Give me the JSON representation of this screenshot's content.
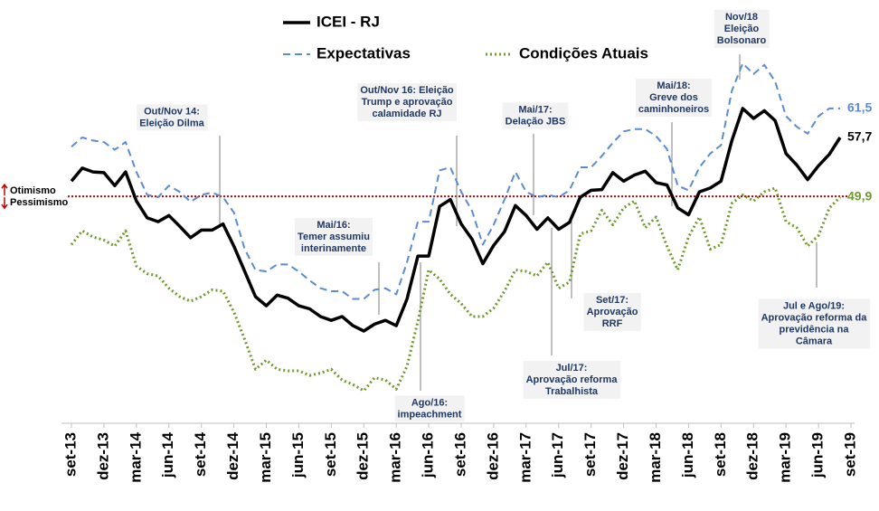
{
  "chart_data": {
    "type": "line",
    "categories": [
      "set-13",
      null,
      null,
      "dez-13",
      null,
      null,
      "mar-14",
      null,
      null,
      "jun-14",
      null,
      null,
      "set-14",
      null,
      null,
      "dez-14",
      null,
      null,
      "mar-15",
      null,
      null,
      "jun-15",
      null,
      null,
      "set-15",
      null,
      null,
      "dez-15",
      null,
      null,
      "mar-16",
      null,
      null,
      "jun-16",
      null,
      null,
      "set-16",
      null,
      null,
      "dez-16",
      null,
      null,
      "mar-17",
      null,
      null,
      "jun-17",
      null,
      null,
      "set-17",
      null,
      null,
      "dez-17",
      null,
      null,
      "mar-18",
      null,
      null,
      "jun-18",
      null,
      null,
      "set-18",
      null,
      null,
      "dez-18",
      null,
      null,
      "mar-19",
      null,
      null,
      "jun-19",
      null,
      null,
      "set-19"
    ],
    "series": [
      {
        "name": "ICEI - RJ",
        "color": "#000000",
        "dash": "solid",
        "values": [
          52.0,
          53.7,
          53.2,
          53.1,
          51.4,
          53.2,
          49.4,
          47.2,
          46.7,
          47.5,
          46.1,
          44.6,
          45.6,
          45.6,
          46.4,
          43.5,
          40.2,
          36.9,
          35.7,
          37.1,
          36.7,
          35.7,
          35.3,
          34.3,
          33.8,
          34.3,
          33.1,
          32.4,
          33.3,
          33.8,
          33.1,
          36.6,
          42.2,
          42.2,
          48.7,
          49.6,
          46.4,
          44.4,
          41.2,
          43.6,
          45.4,
          48.8,
          47.5,
          45.7,
          47.2,
          45.7,
          46.6,
          49.9,
          50.8,
          50.9,
          53.1,
          52.0,
          52.8,
          53.3,
          51.8,
          51.5,
          48.5,
          47.6,
          50.6,
          51.1,
          52.0,
          57.3,
          61.5,
          60.2,
          61.2,
          59.9,
          55.6,
          54.1,
          52.2,
          54.0,
          55.5,
          57.7,
          null
        ],
        "value_labels": [
          null,
          null,
          null,
          null,
          null,
          null,
          null,
          null,
          null,
          null,
          null,
          null,
          null,
          null,
          null,
          null,
          null,
          null,
          null,
          null,
          null,
          null,
          null,
          null,
          null,
          null,
          null,
          null,
          null,
          null,
          null,
          null,
          null,
          null,
          null,
          null,
          null,
          null,
          null,
          null,
          null,
          null,
          null,
          null,
          null,
          null,
          null,
          null,
          null,
          null,
          null,
          null,
          null,
          null,
          null,
          null,
          null,
          null,
          null,
          null,
          null,
          null,
          null,
          null,
          null,
          null,
          null,
          null,
          null,
          null,
          null,
          "57,7",
          null
        ]
      },
      {
        "name": "Expectativas",
        "color": "#5b8bd0",
        "dash": "dashed",
        "values": [
          56.5,
          57.7,
          57.3,
          57.1,
          56.1,
          57.1,
          53.2,
          50.2,
          49.9,
          51.4,
          50.6,
          49.3,
          50.2,
          50.5,
          49.9,
          47.9,
          43.1,
          40.4,
          40.2,
          41.1,
          41.1,
          40.2,
          39.0,
          38.0,
          37.6,
          37.6,
          36.6,
          36.6,
          37.8,
          38.0,
          37.2,
          41.4,
          46.7,
          46.7,
          53.4,
          53.8,
          50.6,
          48.1,
          43.7,
          46.3,
          49.6,
          53.2,
          50.6,
          49.9,
          50.2,
          49.9,
          50.8,
          53.8,
          53.8,
          55.3,
          57.0,
          58.5,
          58.8,
          58.8,
          57.9,
          56.2,
          51.4,
          50.8,
          53.8,
          55.6,
          56.7,
          63.8,
          67.4,
          66.0,
          67.2,
          65.0,
          60.5,
          59.1,
          58.2,
          60.5,
          61.5,
          61.5,
          null
        ],
        "value_labels": [
          null,
          null,
          null,
          null,
          null,
          null,
          null,
          null,
          null,
          null,
          null,
          null,
          null,
          null,
          null,
          null,
          null,
          null,
          null,
          null,
          null,
          null,
          null,
          null,
          null,
          null,
          null,
          null,
          null,
          null,
          null,
          null,
          null,
          null,
          null,
          null,
          null,
          null,
          null,
          null,
          null,
          null,
          null,
          null,
          null,
          null,
          null,
          null,
          null,
          null,
          null,
          null,
          null,
          null,
          null,
          null,
          null,
          null,
          null,
          null,
          null,
          null,
          null,
          null,
          null,
          null,
          null,
          null,
          null,
          null,
          null,
          "61,5",
          null
        ]
      },
      {
        "name": "Condições Atuais",
        "color": "#6e9a2e",
        "dash": "dotted",
        "values": [
          43.7,
          45.5,
          44.7,
          44.3,
          43.5,
          45.5,
          40.9,
          39.9,
          39.6,
          38.0,
          36.9,
          36.3,
          36.9,
          37.8,
          37.6,
          34.9,
          31.3,
          27.4,
          28.6,
          27.4,
          27.2,
          27.2,
          26.6,
          26.9,
          27.4,
          26.0,
          25.4,
          24.6,
          26.3,
          26.0,
          24.8,
          27.8,
          33.7,
          40.4,
          39.2,
          37.2,
          36.0,
          34.3,
          34.3,
          35.4,
          37.6,
          40.4,
          40.2,
          39.6,
          41.4,
          38.0,
          38.8,
          45.1,
          45.5,
          48.2,
          46.3,
          48.5,
          49.4,
          45.9,
          47.3,
          43.5,
          40.4,
          44.7,
          47.3,
          43.1,
          43.7,
          49.1,
          50.2,
          49.4,
          50.6,
          51.1,
          46.7,
          45.9,
          43.5,
          44.9,
          48.5,
          49.9,
          null
        ],
        "value_labels": [
          null,
          null,
          null,
          null,
          null,
          null,
          null,
          null,
          null,
          null,
          null,
          null,
          null,
          null,
          null,
          null,
          null,
          null,
          null,
          null,
          null,
          null,
          null,
          null,
          null,
          null,
          null,
          null,
          null,
          null,
          null,
          null,
          null,
          null,
          null,
          null,
          null,
          null,
          null,
          null,
          null,
          null,
          null,
          null,
          null,
          null,
          null,
          null,
          null,
          null,
          null,
          null,
          null,
          null,
          null,
          null,
          null,
          null,
          null,
          null,
          null,
          null,
          null,
          null,
          null,
          null,
          null,
          null,
          null,
          null,
          null,
          "49,9",
          null
        ]
      }
    ],
    "reference_line": {
      "value": 50,
      "color": "#c00000",
      "labels": [
        "Otimismo",
        "Pessimismo"
      ]
    },
    "annotations": [
      {
        "lines": [
          "Out/Nov 14:",
          "Eleição Dilma"
        ]
      },
      {
        "lines": [
          "Mai/16:",
          "Temer assumiu",
          "interinamente"
        ]
      },
      {
        "lines": [
          "Ago/16:",
          "impeachment"
        ]
      },
      {
        "lines": [
          "Out/Nov 16: Eleição",
          "Trump e aprovação",
          "calamidade RJ"
        ]
      },
      {
        "lines": [
          "Mai/17:",
          "Delação JBS"
        ]
      },
      {
        "lines": [
          "Jul/17:",
          "Aprovação reforma",
          "Trabalhista"
        ]
      },
      {
        "lines": [
          "Set/17:",
          "Aprovação",
          "RRF"
        ]
      },
      {
        "lines": [
          "Mai/18:",
          "Greve dos",
          "caminhoneiros"
        ]
      },
      {
        "lines": [
          "Nov/18",
          "Eleição",
          "Bolsonaro"
        ]
      },
      {
        "lines": [
          "Jul e Ago/19:",
          "Aprovação reforma da",
          "previdência na",
          "Câmara"
        ]
      }
    ]
  }
}
